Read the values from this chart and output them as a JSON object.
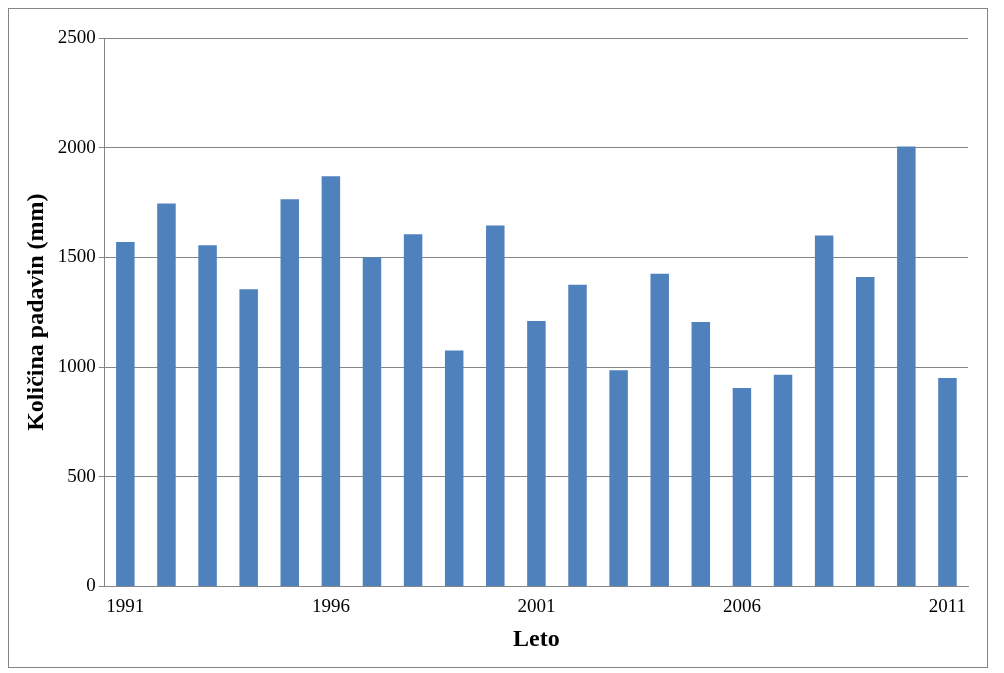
{
  "chart_data": {
    "type": "bar",
    "xlabel": "Leto",
    "ylabel": "Količina padavin (mm)",
    "categories": [
      "1991",
      null,
      null,
      null,
      null,
      "1996",
      null,
      null,
      null,
      null,
      "2001",
      null,
      null,
      null,
      null,
      "2006",
      null,
      null,
      null,
      null,
      "2011"
    ],
    "values": [
      1570,
      1745,
      1555,
      1355,
      1765,
      1870,
      1500,
      1605,
      1075,
      1645,
      1210,
      1375,
      985,
      1425,
      1205,
      905,
      965,
      1600,
      1410,
      2005,
      950
    ],
    "color": "#4f81bd",
    "ylim": [
      0,
      2500
    ],
    "yticks": [
      0,
      500,
      1000,
      1500,
      2000,
      2500
    ],
    "grid": "y",
    "legend": false
  }
}
